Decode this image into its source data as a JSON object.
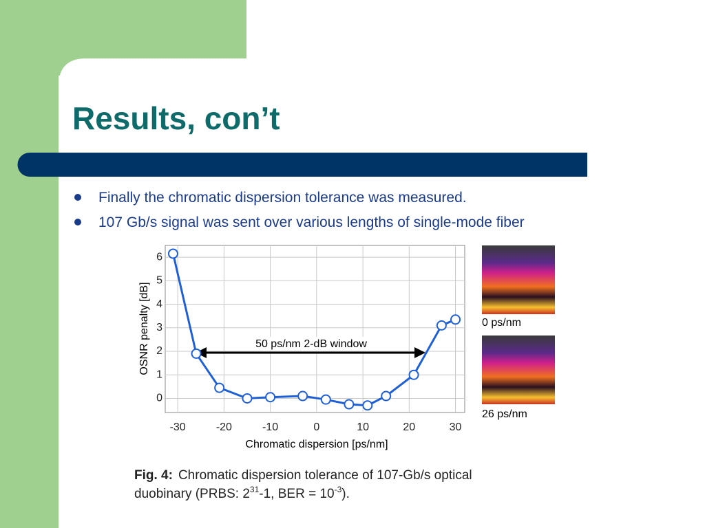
{
  "slide": {
    "title": "Results, con’t",
    "bullets": [
      "Finally the chromatic dispersion tolerance was measured.",
      "107 Gb/s signal was sent over various lengths of single-mode fiber"
    ]
  },
  "chart_data": {
    "type": "line",
    "x": [
      -31,
      -26,
      -21,
      -15,
      -10,
      -3,
      2,
      7,
      11,
      15,
      21,
      27,
      30
    ],
    "series": [
      {
        "name": "OSNR penalty",
        "color": "#1f5fd6",
        "values": [
          6.15,
          1.9,
          0.45,
          0.0,
          0.05,
          0.1,
          -0.05,
          -0.25,
          -0.3,
          0.1,
          1.0,
          3.1,
          3.35
        ]
      }
    ],
    "xlabel": "Chromatic dispersion [ps/nm]",
    "ylabel": "OSNR penalty [dB]",
    "xlim": [
      -32.7,
      32
    ],
    "ylim": [
      -0.6,
      6.5
    ],
    "xticks": [
      -30,
      -20,
      -10,
      0,
      10,
      20,
      30
    ],
    "yticks": [
      0,
      1,
      2,
      3,
      4,
      5,
      6
    ],
    "grid": true,
    "annotation": "50 ps/nm 2-dB window"
  },
  "eye_diagrams": [
    "0 ps/nm",
    "26 ps/nm"
  ],
  "caption": {
    "label": "Fig. 4:",
    "text1": "Chromatic dispersion tolerance of 107-Gb/s optical",
    "text2": "duobinary (PRBS: 2",
    "sup1": "31",
    "text3": "-1, BER = 10",
    "sup2": "-3",
    "text4": ")."
  }
}
